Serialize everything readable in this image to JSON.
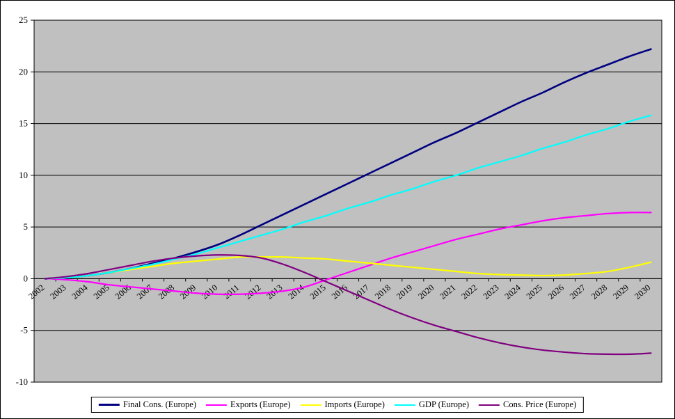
{
  "chart_data": {
    "type": "line",
    "title": "",
    "xlabel": "",
    "ylabel": "",
    "ylim": [
      -10,
      25
    ],
    "ytick_step": 5,
    "grid": true,
    "legend_position": "bottom",
    "plot_background": "#C0C0C0",
    "grid_color": "#000000",
    "categories": [
      "2002",
      "2003",
      "2004",
      "2005",
      "2006",
      "2007",
      "2008",
      "2009",
      "2010",
      "2011",
      "2012",
      "2013",
      "2014",
      "2015",
      "2016",
      "2017",
      "2018",
      "2019",
      "2020",
      "2021",
      "2022",
      "2023",
      "2024",
      "2025",
      "2026",
      "2027",
      "2028",
      "2029",
      "2030"
    ],
    "series": [
      {
        "name": "Final Cons. (Europe)",
        "color": "#000080",
        "width": 2.6,
        "values": [
          0,
          0.1,
          0.3,
          0.6,
          1.0,
          1.5,
          2.0,
          2.6,
          3.3,
          4.2,
          5.2,
          6.2,
          7.2,
          8.2,
          9.2,
          10.2,
          11.2,
          12.2,
          13.2,
          14.1,
          15.1,
          16.1,
          17.1,
          18.0,
          19.0,
          19.9,
          20.7,
          21.5,
          22.2
        ]
      },
      {
        "name": "Exports (Europe)",
        "color": "#FF00FF",
        "width": 2.2,
        "values": [
          0,
          -0.1,
          -0.3,
          -0.6,
          -0.8,
          -1.0,
          -1.2,
          -1.4,
          -1.5,
          -1.5,
          -1.4,
          -1.2,
          -0.8,
          -0.1,
          0.6,
          1.3,
          2.0,
          2.6,
          3.2,
          3.8,
          4.3,
          4.8,
          5.2,
          5.6,
          5.9,
          6.1,
          6.3,
          6.4,
          6.4
        ]
      },
      {
        "name": "Imports (Europe)",
        "color": "#FFFF00",
        "width": 2.2,
        "values": [
          0,
          0.1,
          0.3,
          0.6,
          0.9,
          1.2,
          1.5,
          1.7,
          1.9,
          2.1,
          2.1,
          2.1,
          2.0,
          1.9,
          1.7,
          1.5,
          1.3,
          1.1,
          0.9,
          0.7,
          0.5,
          0.4,
          0.35,
          0.3,
          0.35,
          0.5,
          0.7,
          1.1,
          1.6
        ]
      },
      {
        "name": "GDP (Europe)",
        "color": "#00FFFF",
        "width": 2.2,
        "values": [
          0,
          0.1,
          0.3,
          0.6,
          1.0,
          1.4,
          1.9,
          2.4,
          3.0,
          3.6,
          4.2,
          4.8,
          5.5,
          6.1,
          6.8,
          7.4,
          8.1,
          8.7,
          9.4,
          10.0,
          10.7,
          11.3,
          11.9,
          12.6,
          13.2,
          13.9,
          14.5,
          15.2,
          15.8
        ]
      },
      {
        "name": "Cons. Price (Europe)",
        "color": "#800080",
        "width": 2.2,
        "values": [
          0,
          0.2,
          0.5,
          0.9,
          1.3,
          1.7,
          2.0,
          2.2,
          2.3,
          2.25,
          2.0,
          1.4,
          0.6,
          -0.3,
          -1.2,
          -2.1,
          -3.0,
          -3.8,
          -4.5,
          -5.1,
          -5.7,
          -6.2,
          -6.6,
          -6.9,
          -7.1,
          -7.25,
          -7.3,
          -7.3,
          -7.2
        ]
      }
    ]
  }
}
